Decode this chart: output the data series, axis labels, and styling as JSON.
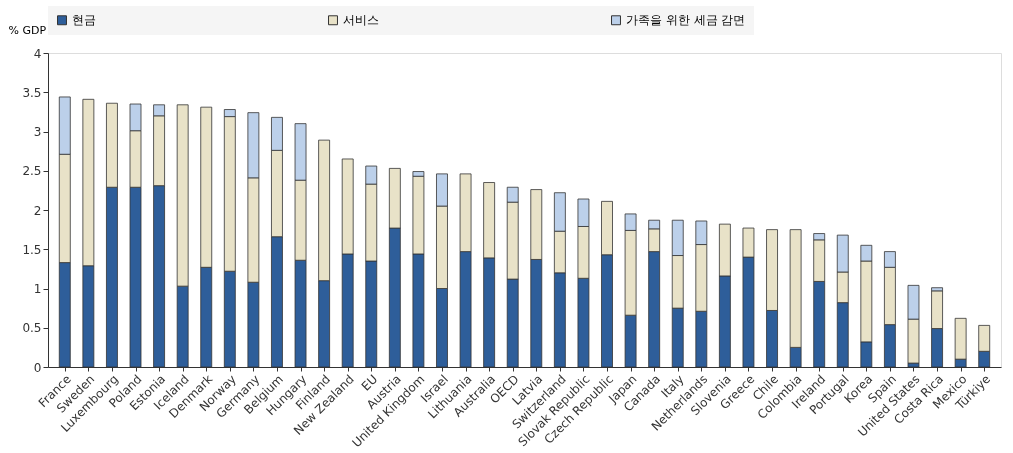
{
  "chart_data": {
    "type": "bar",
    "stacked": true,
    "ylabel": "% GDP",
    "ylim": [
      0,
      4
    ],
    "yticks": [
      0,
      0.5,
      1,
      1.5,
      2,
      2.5,
      3,
      3.5,
      4
    ],
    "grid": false,
    "legend": "top",
    "categories": [
      "France",
      "Sweden",
      "Luxembourg",
      "Poland",
      "Estonia",
      "Iceland",
      "Denmark",
      "Norway",
      "Germany",
      "Belgium",
      "Hungary",
      "Finland",
      "New Zealand",
      "EU",
      "Austria",
      "United Kingdom",
      "Israel",
      "Lithuania",
      "Australia",
      "OECD",
      "Latvia",
      "Switzerland",
      "Slovak Republic",
      "Czech Republic",
      "Japan",
      "Canada",
      "Italy",
      "Netherlands",
      "Slovenia",
      "Greece",
      "Chile",
      "Colombia",
      "Ireland",
      "Portugal",
      "Korea",
      "Spain",
      "United States",
      "Costa Rica",
      "Mexico",
      "Türkiye"
    ],
    "series": [
      {
        "name": "현금",
        "color": "#2e5e9a",
        "values": [
          1.33,
          1.29,
          2.29,
          2.29,
          2.31,
          1.03,
          1.27,
          1.22,
          1.08,
          1.66,
          1.36,
          1.1,
          1.44,
          1.35,
          1.77,
          1.44,
          1.0,
          1.47,
          1.39,
          1.12,
          1.37,
          1.2,
          1.13,
          1.43,
          0.66,
          1.47,
          0.75,
          0.71,
          1.16,
          1.4,
          0.72,
          0.25,
          1.09,
          0.82,
          0.32,
          0.54,
          0.05,
          0.49,
          0.1,
          0.2
        ]
      },
      {
        "name": "서비스",
        "color": "#e8e2c8",
        "values": [
          1.38,
          2.12,
          1.07,
          0.72,
          0.89,
          2.31,
          2.04,
          1.97,
          1.33,
          1.1,
          1.02,
          1.79,
          1.21,
          0.98,
          0.76,
          0.99,
          1.05,
          0.99,
          0.96,
          0.98,
          0.89,
          0.53,
          0.66,
          0.68,
          1.08,
          0.29,
          0.67,
          0.85,
          0.66,
          0.37,
          1.03,
          1.5,
          0.53,
          0.39,
          1.03,
          0.73,
          0.56,
          0.48,
          0.52,
          0.33
        ]
      },
      {
        "name": "가족을 위한 세금 감면",
        "color": "#bcd0ea",
        "values": [
          0.73,
          null,
          null,
          0.34,
          0.14,
          null,
          null,
          0.09,
          0.83,
          0.42,
          0.72,
          null,
          null,
          0.23,
          null,
          0.06,
          0.41,
          null,
          null,
          0.19,
          null,
          0.49,
          0.35,
          null,
          0.21,
          0.11,
          0.45,
          0.3,
          null,
          null,
          null,
          null,
          0.08,
          0.47,
          0.2,
          0.2,
          0.43,
          0.04,
          null,
          null
        ]
      }
    ]
  }
}
